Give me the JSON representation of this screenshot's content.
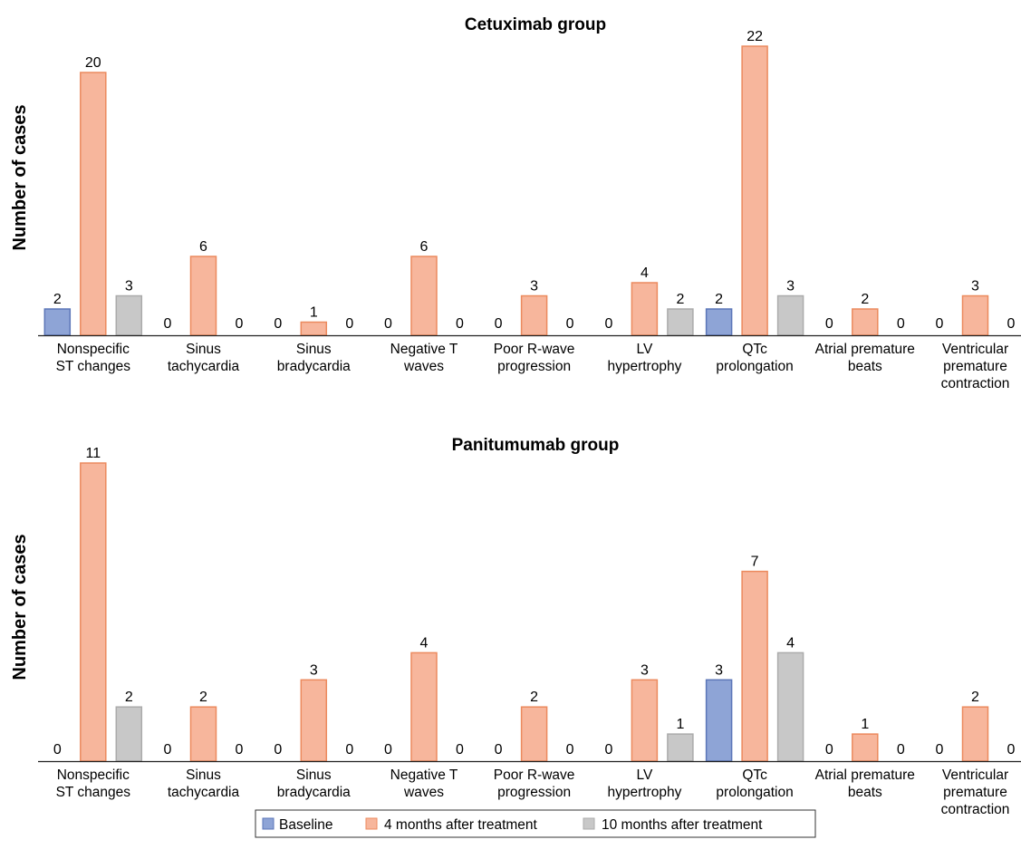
{
  "chart_data": [
    {
      "type": "bar",
      "title": "Cetuximab group",
      "ylabel": "Number of cases",
      "xlabel": "",
      "ylim": [
        0,
        22
      ],
      "grid": false,
      "categories": [
        [
          "Nonspecific",
          "ST changes"
        ],
        [
          "Sinus",
          "tachycardia"
        ],
        [
          "Sinus",
          "bradycardia"
        ],
        [
          "Negative T",
          "waves"
        ],
        [
          "Poor R-wave",
          "progression"
        ],
        [
          "LV",
          "hypertrophy"
        ],
        [
          "QTc",
          "prolongation"
        ],
        [
          "Atrial premature",
          "beats"
        ],
        [
          "Ventricular",
          "premature",
          "contraction"
        ]
      ],
      "series": [
        {
          "name": "Baseline",
          "values": [
            2,
            0,
            0,
            0,
            0,
            0,
            2,
            0,
            0
          ]
        },
        {
          "name": "4 months after treatment",
          "values": [
            20,
            6,
            1,
            6,
            3,
            4,
            22,
            2,
            3
          ]
        },
        {
          "name": "10 months after treatment",
          "values": [
            3,
            0,
            0,
            0,
            0,
            2,
            3,
            0,
            0
          ]
        }
      ]
    },
    {
      "type": "bar",
      "title": "Panitumumab group",
      "ylabel": "Number of cases",
      "xlabel": "",
      "ylim": [
        0,
        11
      ],
      "grid": false,
      "categories": [
        [
          "Nonspecific",
          "ST changes"
        ],
        [
          "Sinus",
          "tachycardia"
        ],
        [
          "Sinus",
          "bradycardia"
        ],
        [
          "Negative T",
          "waves"
        ],
        [
          "Poor R-wave",
          "progression"
        ],
        [
          "LV",
          "hypertrophy"
        ],
        [
          "QTc",
          "prolongation"
        ],
        [
          "Atrial premature",
          "beats"
        ],
        [
          "Ventricular",
          "premature",
          "contraction"
        ]
      ],
      "series": [
        {
          "name": "Baseline",
          "values": [
            0,
            0,
            0,
            0,
            0,
            0,
            3,
            0,
            0
          ]
        },
        {
          "name": "4 months after treatment",
          "values": [
            11,
            2,
            3,
            4,
            2,
            3,
            7,
            1,
            2
          ]
        },
        {
          "name": "10 months after treatment",
          "values": [
            2,
            0,
            0,
            0,
            0,
            1,
            4,
            0,
            0
          ]
        }
      ]
    }
  ],
  "legend": {
    "placement": "bottom-center",
    "items": [
      {
        "label": "Baseline",
        "fill": "#8ea4d6",
        "stroke": "#5b76b8"
      },
      {
        "label": "4 months after treatment",
        "fill": "#f7b69c",
        "stroke": "#ec8a5e"
      },
      {
        "label": "10 months after treatment",
        "fill": "#c8c8c8",
        "stroke": "#ababab"
      }
    ]
  },
  "colors": {
    "baseline": {
      "fill": "#8ea4d6",
      "stroke": "#5b76b8"
    },
    "month4": {
      "fill": "#f7b69c",
      "stroke": "#ec8a5e"
    },
    "month10": {
      "fill": "#c8c8c8",
      "stroke": "#ababab"
    },
    "axis": "#222222"
  }
}
